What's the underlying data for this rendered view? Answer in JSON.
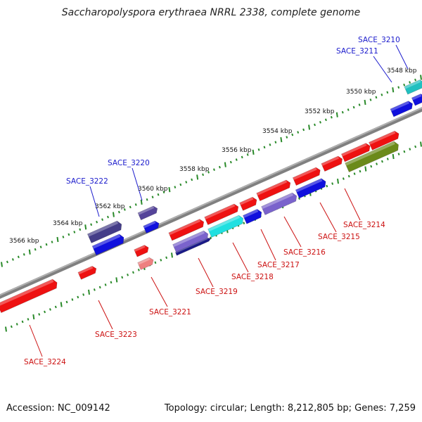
{
  "title": "Saccharopolyspora erythraea NRRL 2338, complete genome",
  "accession_label": "Accession: NC_009142",
  "topology_label": "Topology: circular; Length: 8,212,805 bp; Genes: 7,259",
  "colors": {
    "backbone": "#808080",
    "tick": "#2a8a2a",
    "label_forward": "#1a1acc",
    "label_reverse": "#cc1111"
  },
  "kbp_labels": [
    "3548 kbp",
    "3550 kbp",
    "3552 kbp",
    "3554 kbp",
    "3556 kbp",
    "3558 kbp",
    "3560 kbp",
    "3562 kbp",
    "3564 kbp",
    "3566 kbp"
  ],
  "gene_labels": [
    {
      "text": "SACE_3210",
      "strand": "forward"
    },
    {
      "text": "SACE_3211",
      "strand": "forward"
    },
    {
      "text": "SACE_3220",
      "strand": "forward"
    },
    {
      "text": "SACE_3222",
      "strand": "forward"
    },
    {
      "text": "SACE_3214",
      "strand": "reverse"
    },
    {
      "text": "SACE_3215",
      "strand": "reverse"
    },
    {
      "text": "SACE_3216",
      "strand": "reverse"
    },
    {
      "text": "SACE_3217",
      "strand": "reverse"
    },
    {
      "text": "SACE_3218",
      "strand": "reverse"
    },
    {
      "text": "SACE_3219",
      "strand": "reverse"
    },
    {
      "text": "SACE_3221",
      "strand": "reverse"
    },
    {
      "text": "SACE_3223",
      "strand": "reverse"
    },
    {
      "text": "SACE_3224",
      "strand": "reverse"
    }
  ]
}
